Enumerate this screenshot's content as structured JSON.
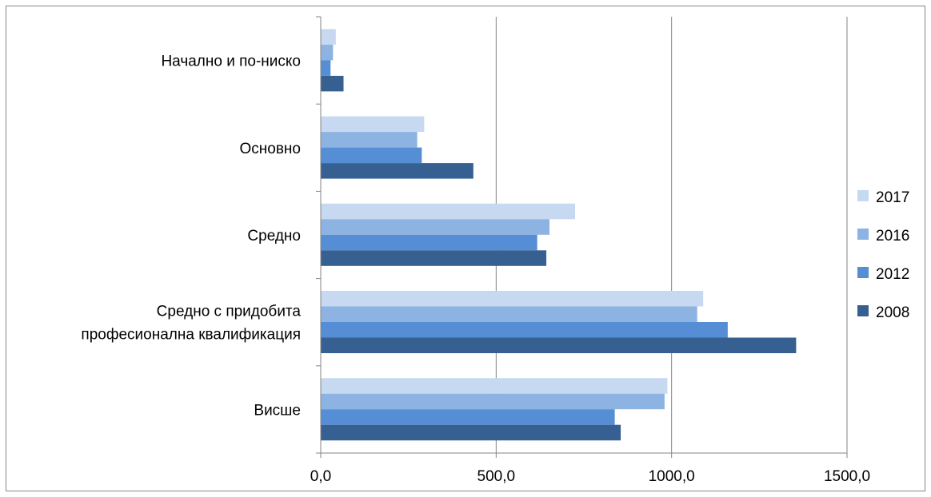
{
  "chart_data": {
    "type": "bar",
    "orientation": "horizontal",
    "categories": [
      [
        "Начално и по-ниско"
      ],
      [
        "Основно"
      ],
      [
        "Средно"
      ],
      [
        "Средно с придобита",
        "професионална квалификация"
      ],
      [
        "Висше"
      ]
    ],
    "series": [
      {
        "name": "2017",
        "color": "#c6d9f1",
        "values": [
          43,
          295,
          725,
          1090,
          988
        ]
      },
      {
        "name": "2016",
        "color": "#8db3e2",
        "values": [
          35,
          275,
          652,
          1073,
          980
        ]
      },
      {
        "name": "2012",
        "color": "#558ed5",
        "values": [
          28,
          288,
          617,
          1160,
          838
        ]
      },
      {
        "name": "2008",
        "color": "#366092",
        "values": [
          65,
          435,
          643,
          1355,
          855
        ]
      }
    ],
    "xlim": [
      0,
      1500
    ],
    "xticks": [
      0,
      500,
      1000,
      1500
    ],
    "xtick_labels": [
      "0,0",
      "500,0",
      "1000,0",
      "1500,0"
    ],
    "grid": "vertical major gridlines",
    "legend_position": "right",
    "title": "",
    "xlabel": "",
    "ylabel": ""
  }
}
